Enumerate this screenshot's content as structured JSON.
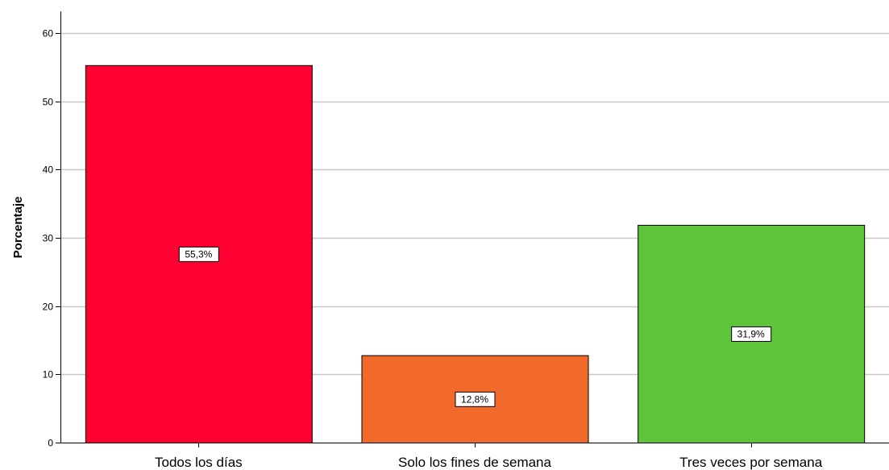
{
  "chart_data": {
    "type": "bar",
    "categories": [
      "Todos los días",
      "Solo los fines de semana",
      "Tres veces por semana"
    ],
    "values": [
      55.3,
      12.8,
      31.9
    ],
    "data_labels": [
      "55,3%",
      "12,8%",
      "31,9%"
    ],
    "colors": [
      "#ff0033",
      "#f26a2b",
      "#5ec43a"
    ],
    "ylabel": "Porcentaje",
    "xlabel": "",
    "ylim": [
      0,
      60
    ],
    "yticks": [
      "0",
      "10",
      "20",
      "30",
      "40",
      "50",
      "60"
    ],
    "grid": true,
    "legend": "none"
  }
}
